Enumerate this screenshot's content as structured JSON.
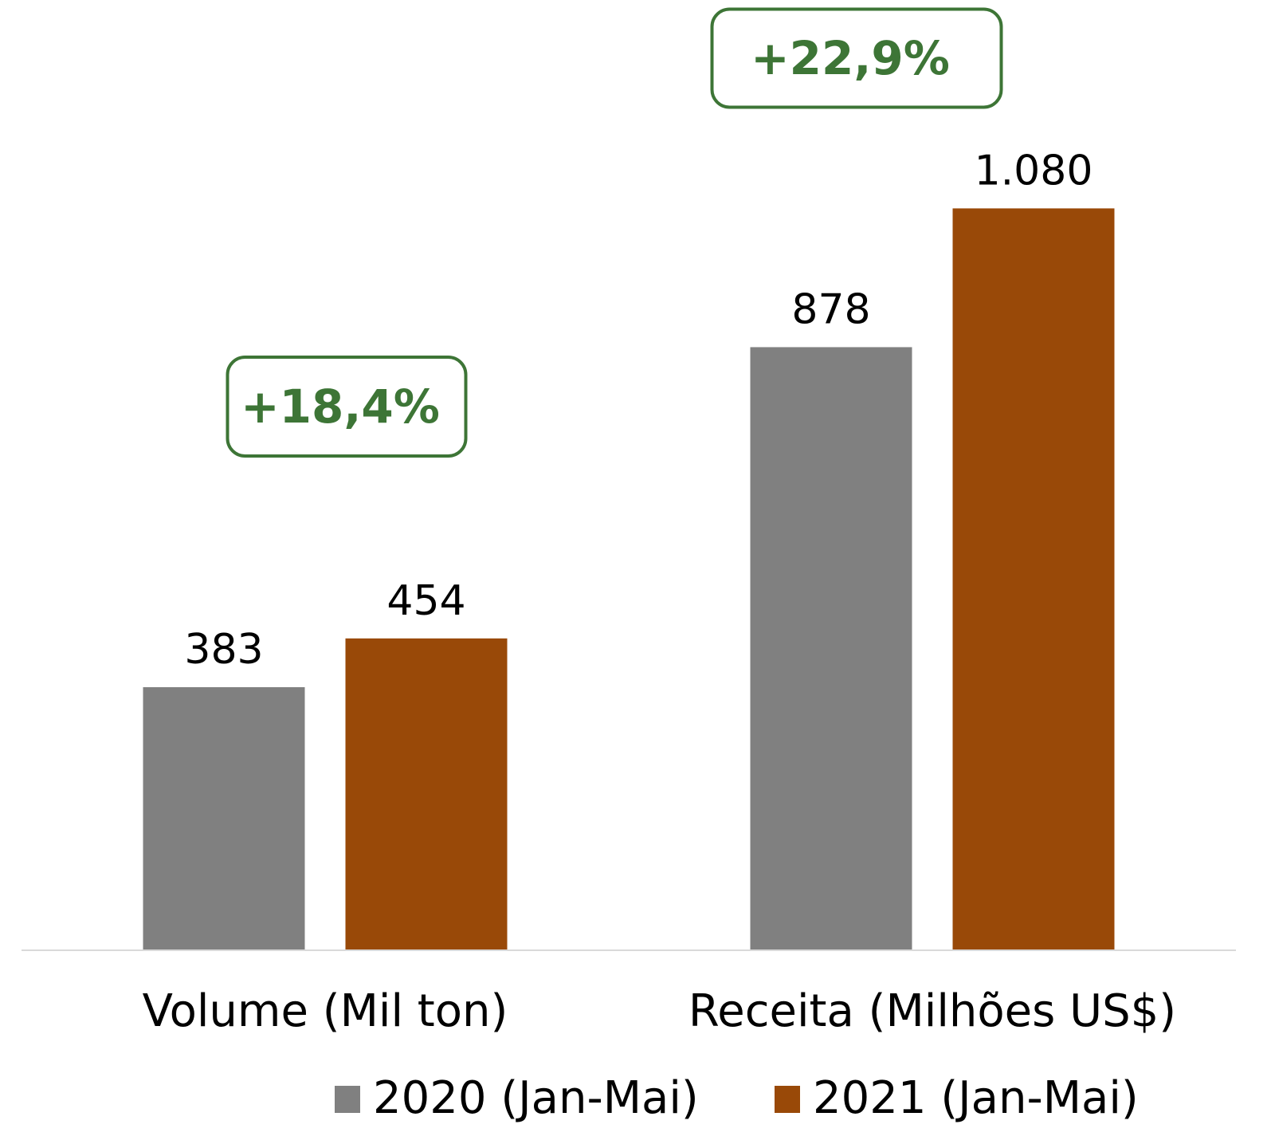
{
  "chart_data": {
    "type": "bar",
    "categories": [
      "Volume (Mil ton)",
      "Receita (Milhões US$)"
    ],
    "series": [
      {
        "name": "2020 (Jan-Mai)",
        "color": "#808080",
        "values": [
          383,
          878
        ]
      },
      {
        "name": "2021 (Jan-Mai)",
        "color": "#994908",
        "values": [
          454,
          1080
        ],
        "value_labels": [
          "454",
          "1.080"
        ]
      }
    ],
    "annotations": [
      "+18,4%",
      "+22,9%"
    ],
    "annotation_color": "#3d7536",
    "ylim": [
      0,
      1200
    ]
  }
}
